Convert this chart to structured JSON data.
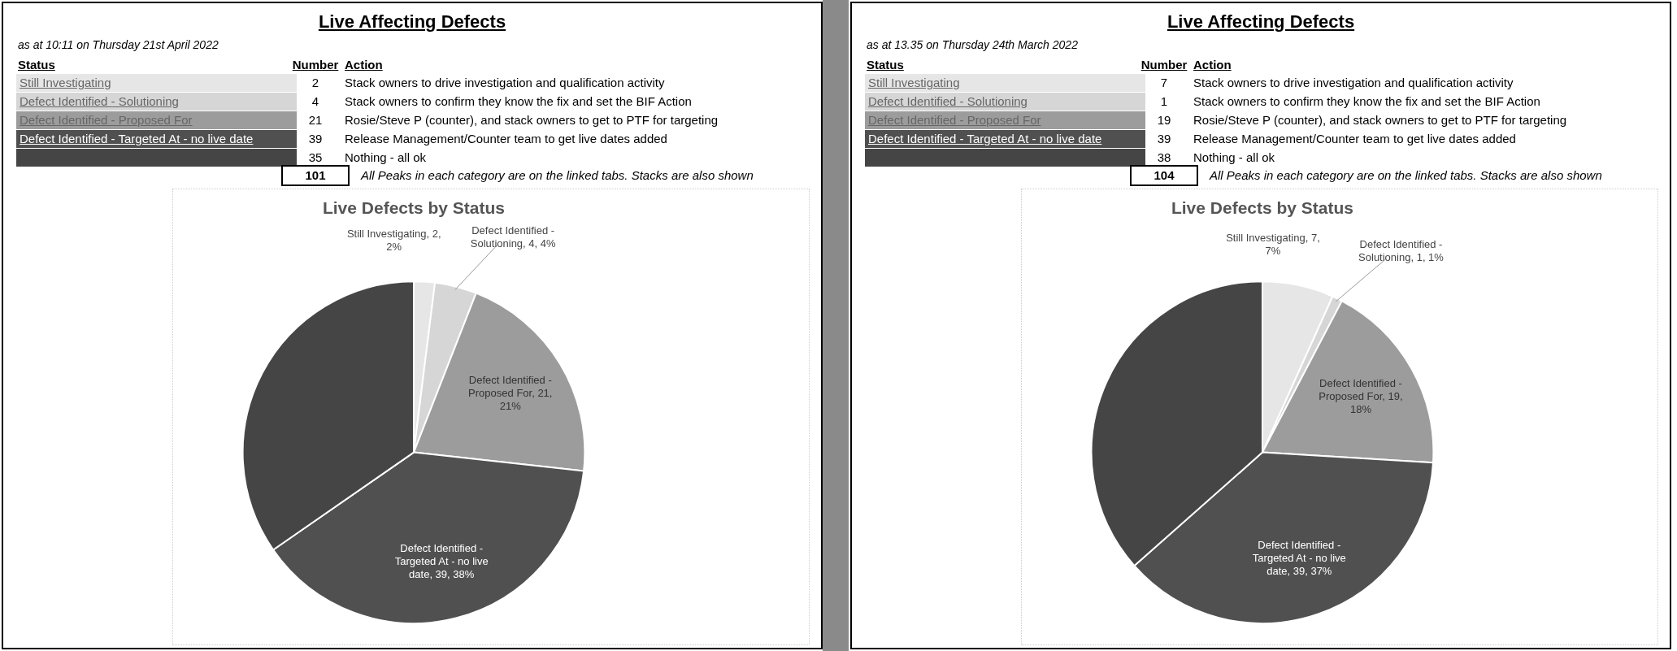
{
  "chart_data": [
    {
      "type": "other",
      "title": "Live Affecting Defects",
      "subtitle": "as at 10:11 on Thursday 21st April 2022",
      "categories": [
        "Still Investigating",
        "Defect Identified - Solutioning",
        "Defect Identified - Proposed For",
        "Defect Identified - Targeted At - no live date",
        null
      ],
      "values": [
        2,
        4,
        21,
        39,
        35
      ],
      "data_labels": true,
      "colors": [
        "#e6e6e6",
        "#d6d6d6",
        "#9c9c9c",
        "#505050",
        "#454545"
      ],
      "totals": [
        "101"
      ],
      "annotations": [
        "Status",
        "Number",
        "Action",
        "Stack owners to drive investigation and qualification activity",
        "Stack owners to confirm they know the fix and set the BIF Action",
        "Rosie/Steve P (counter), and stack owners to get to PTF for targeting",
        "Release Management/Counter team to get live dates added",
        "Nothing - all ok",
        "All Peaks in each category are on the linked tabs. Stacks are also shown"
      ]
    },
    {
      "type": "pie",
      "title": "Live Defects by Status",
      "categories": [
        "Still Investigating",
        "Defect Identified - Solutioning",
        "Defect Identified - Proposed For",
        "Defect Identified - Targeted At - no live date",
        null
      ],
      "values": [
        2,
        4,
        21,
        39,
        35
      ],
      "colors": [
        "#e6e6e6",
        "#d6d6d6",
        "#9c9c9c",
        "#505050",
        "#454545"
      ],
      "value_labels": [
        "2, 2%",
        "4, 4%",
        "21, 21%",
        "39, 38%",
        null
      ],
      "legend": false
    },
    {
      "type": "other",
      "title": "Live Affecting Defects",
      "subtitle": "as at 13.35 on Thursday 24th March 2022",
      "categories": [
        "Still Investigating",
        "Defect Identified - Solutioning",
        "Defect Identified - Proposed For",
        "Defect Identified - Targeted At - no live date",
        null
      ],
      "values": [
        7,
        1,
        19,
        39,
        38
      ],
      "data_labels": true,
      "colors": [
        "#e6e6e6",
        "#d6d6d6",
        "#9c9c9c",
        "#505050",
        "#454545"
      ],
      "totals": [
        "104"
      ],
      "annotations": [
        "Status",
        "Number",
        "Action",
        "Stack owners to drive investigation and qualification activity",
        "Stack owners to confirm they know the fix and set the BIF Action",
        "Rosie/Steve P (counter), and stack owners to get to PTF for targeting",
        "Release Management/Counter team to get live dates added",
        "Nothing - all ok",
        "All Peaks in each category are on the linked tabs. Stacks are also shown"
      ]
    },
    {
      "type": "pie",
      "title": "Live Defects by Status",
      "categories": [
        "Still Investigating",
        "Defect Identified - Solutioning",
        "Defect Identified - Proposed For",
        "Defect Identified - Targeted At - no live date",
        null
      ],
      "values": [
        7,
        1,
        19,
        39,
        38
      ],
      "colors": [
        "#e6e6e6",
        "#d6d6d6",
        "#9c9c9c",
        "#505050",
        "#454545"
      ],
      "value_labels": [
        "7, 7%",
        "1, 1%",
        "19, 18%",
        "39, 37%",
        null
      ],
      "legend": false
    }
  ]
}
